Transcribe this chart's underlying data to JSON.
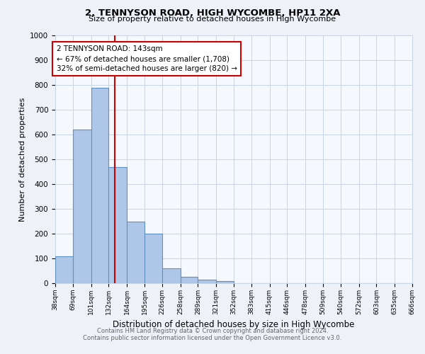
{
  "title1": "2, TENNYSON ROAD, HIGH WYCOMBE, HP11 2XA",
  "title2": "Size of property relative to detached houses in High Wycombe",
  "xlabel": "Distribution of detached houses by size in High Wycombe",
  "ylabel": "Number of detached properties",
  "bins": [
    38,
    69,
    101,
    132,
    164,
    195,
    226,
    258,
    289,
    321,
    352,
    383,
    415,
    446,
    478,
    509,
    540,
    572,
    603,
    635,
    666
  ],
  "bar_heights": [
    110,
    620,
    790,
    470,
    250,
    200,
    60,
    25,
    15,
    10,
    0,
    0,
    0,
    0,
    0,
    0,
    0,
    0,
    0,
    0
  ],
  "bar_color": "#aec6e8",
  "bar_edge_color": "#6090c0",
  "vline_x": 143,
  "vline_color": "#cc0000",
  "annotation_text": "2 TENNYSON ROAD: 143sqm\n← 67% of detached houses are smaller (1,708)\n32% of semi-detached houses are larger (820) →",
  "annotation_box_color": "#ffffff",
  "annotation_box_edge_color": "#cc0000",
  "ylim": [
    0,
    1000
  ],
  "yticks": [
    0,
    100,
    200,
    300,
    400,
    500,
    600,
    700,
    800,
    900,
    1000
  ],
  "footer1": "Contains HM Land Registry data © Crown copyright and database right 2024.",
  "footer2": "Contains public sector information licensed under the Open Government Licence v3.0.",
  "bg_color": "#eef2f8",
  "plot_bg_color": "#f5f8fd",
  "grid_color": "#c8d4e4"
}
